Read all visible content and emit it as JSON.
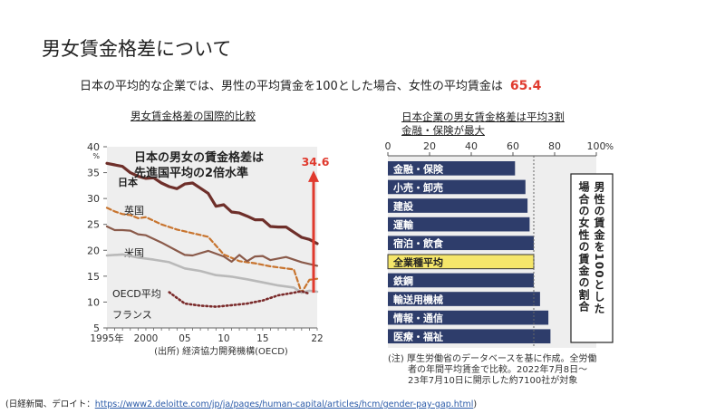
{
  "slide": {
    "title": "男女賃金格差について",
    "lead_text": "日本の平均的な企業では、男性の平均賃金を100とした場合、女性の平均賃金は",
    "lead_value": "65.4",
    "footer_prefix": "(日経新聞、デロイト：",
    "footer_url": "https://www2.deloitte.com/jp/ja/pages/human-capital/articles/hcm/gender-pay-gap.html",
    "footer_suffix": ")"
  },
  "colors": {
    "accent": "#e03a2e",
    "japan": "#6e2f2a",
    "uk": "#c8742e",
    "us": "#8a5a4a",
    "oecd": "#b9b9b9",
    "france": "#7a2a2a",
    "bar": "#2e3d6b",
    "bar_highlight": "#f5e66a",
    "panel_bg": "#eeeeee"
  },
  "chart_data": [
    {
      "type": "line",
      "title": "男女賃金格差の国際的比較",
      "annotation_heading": [
        "日本の男女の賃金格差は",
        "先進国平均の2倍水準"
      ],
      "annotation_value": "34.6",
      "ylim": [
        5,
        40
      ],
      "yticks": [
        "5",
        "10",
        "15",
        "20",
        "25",
        "30",
        "35",
        "40"
      ],
      "y_unit": "%",
      "xlim": [
        1995,
        2022
      ],
      "xticks": [
        {
          "x": 1995,
          "label": "1995年"
        },
        {
          "x": 2000,
          "label": "2000"
        },
        {
          "x": 2005,
          "label": "05"
        },
        {
          "x": 2010,
          "label": "10"
        },
        {
          "x": 2015,
          "label": "15"
        },
        {
          "x": 2022,
          "label": "22"
        }
      ],
      "source": "(出所) 経済協力開発機構(OECD)",
      "series": [
        {
          "name": "日本",
          "style": "solid",
          "x": [
            1995,
            1996,
            1997,
            1998,
            1999,
            2000,
            2001,
            2002,
            2003,
            2004,
            2005,
            2006,
            2007,
            2008,
            2009,
            2010,
            2011,
            2012,
            2013,
            2014,
            2015,
            2016,
            2017,
            2018,
            2019,
            2020,
            2021,
            2022
          ],
          "values": [
            36.8,
            36.5,
            36.2,
            35.0,
            34.3,
            33.9,
            34.0,
            33.0,
            32.3,
            31.9,
            32.8,
            33.0,
            32.0,
            31.0,
            28.5,
            28.8,
            27.4,
            27.2,
            26.6,
            25.9,
            25.9,
            24.6,
            24.5,
            24.5,
            23.5,
            22.5,
            22.1,
            21.3
          ]
        },
        {
          "name": "英国",
          "style": "dashed",
          "x": [
            1995,
            1996,
            1997,
            1998,
            1999,
            2000,
            2002,
            2004,
            2006,
            2008,
            2010,
            2012,
            2014,
            2016,
            2018,
            2019,
            2020,
            2021,
            2022
          ],
          "values": [
            28.2,
            27.5,
            27.0,
            26.8,
            26.2,
            26.4,
            25.0,
            24.0,
            23.3,
            22.6,
            19.2,
            17.9,
            17.5,
            16.9,
            16.5,
            16.3,
            11.8,
            14.3,
            14.5
          ]
        },
        {
          "name": "米国",
          "style": "solid",
          "x": [
            1995,
            1996,
            1997,
            1998,
            1999,
            2000,
            2002,
            2004,
            2005,
            2006,
            2008,
            2010,
            2011,
            2012,
            2013,
            2014,
            2015,
            2016,
            2018,
            2020,
            2022
          ],
          "values": [
            24.6,
            23.9,
            23.9,
            23.8,
            23.1,
            22.9,
            21.5,
            19.9,
            19.1,
            19.0,
            19.9,
            18.8,
            17.8,
            19.1,
            17.9,
            18.8,
            18.9,
            18.1,
            18.7,
            17.7,
            17.0
          ]
        },
        {
          "name": "OECD平均",
          "style": "solid",
          "x": [
            1995,
            1997,
            1999,
            2001,
            2003,
            2005,
            2007,
            2009,
            2011,
            2013,
            2015,
            2017,
            2019,
            2020,
            2021,
            2022
          ],
          "values": [
            19.0,
            19.2,
            18.6,
            18.2,
            17.7,
            16.5,
            16.0,
            15.2,
            14.9,
            14.4,
            13.8,
            13.2,
            12.8,
            11.8,
            12.2,
            12.0
          ]
        },
        {
          "name": "フランス",
          "style": "dotted",
          "x": [
            2003,
            2005,
            2007,
            2009,
            2011,
            2013,
            2015,
            2017,
            2019,
            2020,
            2021
          ],
          "values": [
            11.9,
            9.7,
            9.3,
            9.1,
            9.4,
            9.7,
            10.3,
            11.3,
            11.8,
            12.1,
            11.6
          ]
        }
      ]
    },
    {
      "type": "bar",
      "title": "日本企業の男女賃金格差は平均3割",
      "subtitle": "金融・保険が最大",
      "xlim": [
        0,
        100
      ],
      "xticks": [
        0,
        20,
        40,
        60,
        80,
        100
      ],
      "xticks_unit": "%",
      "reference_value": 70,
      "axis_label": "男性の賃金を100とした場合の女性の賃金の割合",
      "categories": [
        "金融・保険",
        "小売・卸売",
        "建設",
        "運輸",
        "宿泊・飲食",
        "全業種平均",
        "鉄鋼",
        "輸送用機械",
        "情報・通信",
        "医療・福祉"
      ],
      "values": [
        61,
        66,
        67,
        68,
        70,
        70,
        70,
        73,
        77,
        78
      ],
      "highlight": "全業種平均",
      "note": [
        "(注) 厚生労働省のデータベースを基に作成。全労働",
        "者の年間平均賃金で比較。2022年7月8日～",
        "23年7月10日に開示した約7100社が対象"
      ]
    }
  ]
}
